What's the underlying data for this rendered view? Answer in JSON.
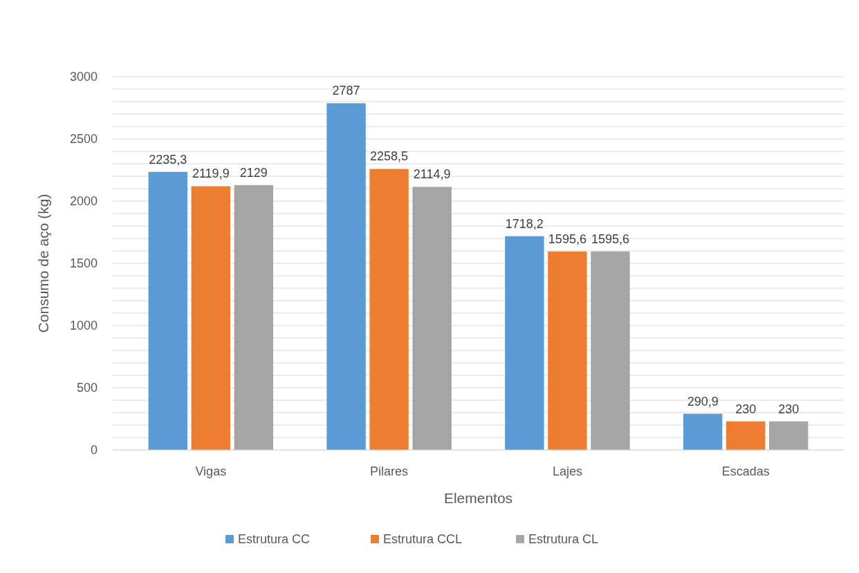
{
  "chart_data": {
    "type": "bar",
    "xlabel": "Elementos",
    "ylabel": "Consumo de aço (kg)",
    "categories": [
      "Vigas",
      "Pilares",
      "Lajes",
      "Escadas"
    ],
    "series": [
      {
        "name": "Estrutura CC",
        "color": "#5b9bd5",
        "values": [
          2235.3,
          2787,
          1718.2,
          290.9
        ],
        "value_labels": [
          "2235,3",
          "2787",
          "1718,2",
          "290,9"
        ]
      },
      {
        "name": "Estrutura CCL",
        "color": "#ed7d31",
        "values": [
          2119.9,
          2258.5,
          1595.6,
          230
        ],
        "value_labels": [
          "2119,9",
          "2258,5",
          "1595,6",
          "230"
        ]
      },
      {
        "name": "Estrutura CL",
        "color": "#a5a5a5",
        "values": [
          2129,
          2114.9,
          1595.6,
          230
        ],
        "value_labels": [
          "2129",
          "2114,9",
          "1595,6",
          "230"
        ]
      }
    ],
    "ylim": [
      0,
      3000
    ],
    "yticks": [
      0,
      {
        "value": 100,
        "label": null
      },
      {
        "value": 200,
        "label": null
      },
      {
        "value": 300,
        "label": null
      },
      {
        "value": 400,
        "label": null
      },
      500,
      {
        "value": 600,
        "label": null
      },
      {
        "value": 700,
        "label": null
      },
      {
        "value": 800,
        "label": null
      },
      {
        "value": 900,
        "label": null
      },
      1000,
      {
        "value": 1100,
        "label": null
      },
      {
        "value": 1200,
        "label": null
      },
      {
        "value": 1300,
        "label": null
      },
      {
        "value": 1400,
        "label": null
      },
      1500,
      {
        "value": 1600,
        "label": null
      },
      {
        "value": 1700,
        "label": null
      },
      {
        "value": 1800,
        "label": null
      },
      {
        "value": 1900,
        "label": null
      },
      2000,
      {
        "value": 2100,
        "label": null
      },
      {
        "value": 2200,
        "label": null
      },
      {
        "value": 2300,
        "label": null
      },
      {
        "value": 2400,
        "label": null
      },
      2500,
      {
        "value": 2600,
        "label": null
      },
      {
        "value": 2700,
        "label": null
      },
      {
        "value": 2800,
        "label": null
      },
      {
        "value": 2900,
        "label": null
      },
      3000
    ],
    "grid": true,
    "legend": "bottom"
  }
}
